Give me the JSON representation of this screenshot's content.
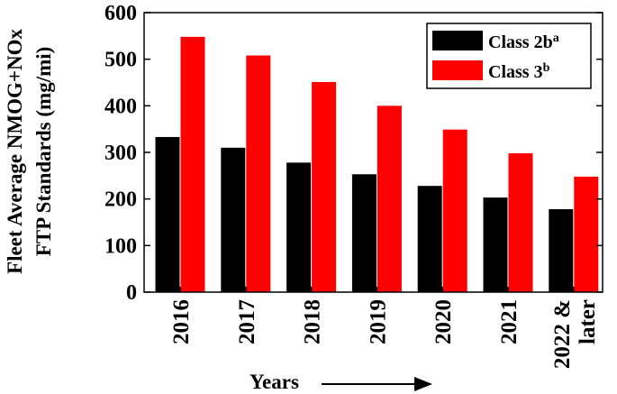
{
  "chart_data": {
    "type": "bar",
    "categories": [
      [
        "2016"
      ],
      [
        "2017"
      ],
      [
        "2018"
      ],
      [
        "2019"
      ],
      [
        "2020"
      ],
      [
        "2021"
      ],
      [
        "2022 &",
        "later"
      ]
    ],
    "series": [
      {
        "name": "Class 2b",
        "superscript": "a",
        "color": "#000000",
        "values": [
          333,
          310,
          278,
          253,
          228,
          203,
          178
        ]
      },
      {
        "name": "Class 3",
        "superscript": "b",
        "color": "#ff0000",
        "values": [
          548,
          508,
          451,
          400,
          349,
          298,
          248
        ]
      }
    ],
    "ylabel_lines": [
      "Fleet Average NMOG+NOx",
      "FTP Standards (mg/mi)"
    ],
    "xlabel": "Years",
    "ylim": [
      0,
      600
    ],
    "yticks": [
      0,
      100,
      200,
      300,
      400,
      500,
      600
    ],
    "legend_position": "top-right",
    "grid": false
  }
}
